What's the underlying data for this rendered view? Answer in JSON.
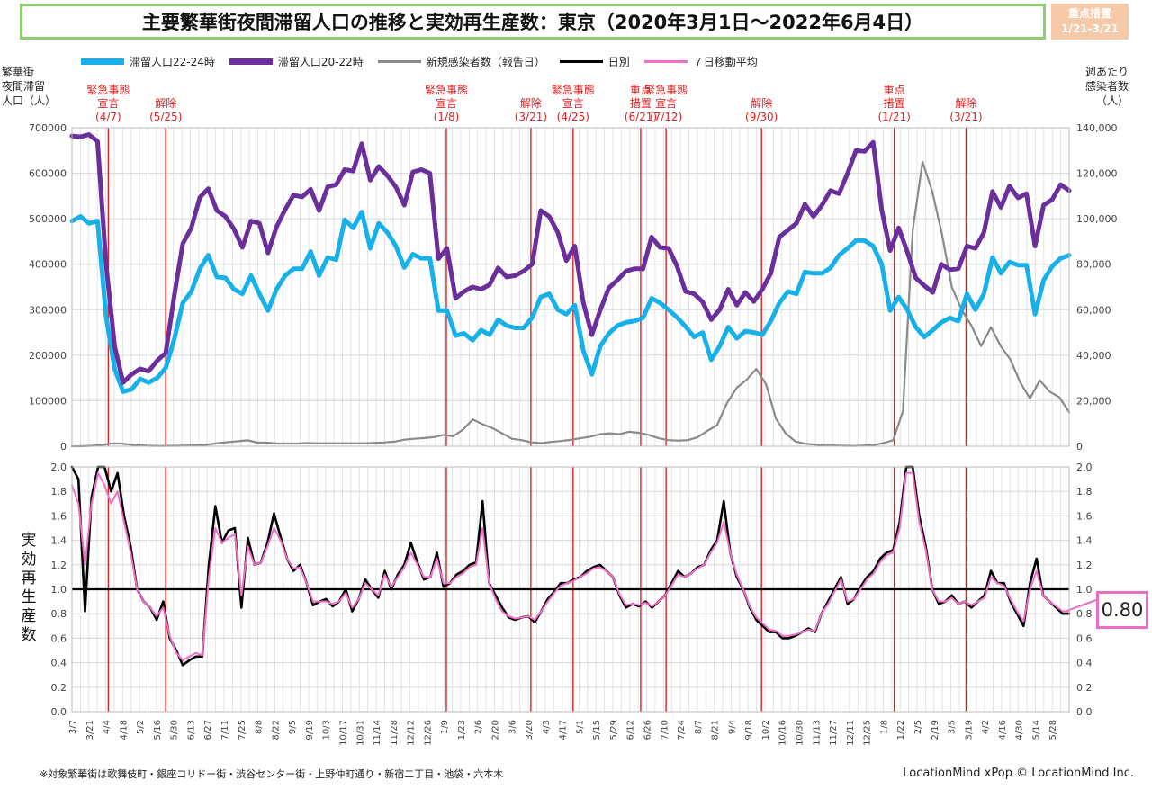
{
  "title": "主要繁華街夜間滞留人口の推移と実効再生産数：東京（2020年3月1日～2022年6月4日）",
  "badge": [
    "重点措置",
    "1/21-3/21"
  ],
  "legend": [
    {
      "name": "滞留人口22-24時",
      "color": "#18b0e8"
    },
    {
      "name": "滞留人口20-22時",
      "color": "#6a2f9a"
    },
    {
      "name": "新規感染者数（報告日）",
      "color": "#8a8a8a"
    },
    {
      "name": "日別",
      "color": "#000000"
    },
    {
      "name": "７日移動平均",
      "color": "#f06fc8"
    }
  ],
  "left_axis_title": [
    "繁華街",
    "夜間滞留",
    "人口（人）"
  ],
  "right_axis_title": [
    "週あたり",
    "感染者数",
    "（人）"
  ],
  "lower_axis_title": "実効再生産数",
  "rt_current": "0.80",
  "footnote": "※対象繁華街は歌舞伎町・銀座コリドー街・渋谷センター街・上野仲町通り・新宿二丁目・池袋・六本木",
  "credit": "LocationMind xPop © LocationMind Inc.",
  "chart_data": [
    {
      "type": "line",
      "x_ticks": [
        "3/7",
        "3/21",
        "4/4",
        "4/18",
        "5/2",
        "5/16",
        "5/30",
        "6/13",
        "6/27",
        "7/11",
        "7/25",
        "8/8",
        "8/22",
        "9/5",
        "9/19",
        "10/3",
        "10/17",
        "10/31",
        "11/14",
        "11/28",
        "12/12",
        "12/26",
        "1/9",
        "1/23",
        "2/6",
        "2/20",
        "3/6",
        "3/20",
        "4/3",
        "4/17",
        "5/1",
        "5/15",
        "5/29",
        "6/12",
        "6/26",
        "7/10",
        "7/24",
        "8/7",
        "8/21",
        "9/4",
        "9/18",
        "10/2",
        "10/16",
        "10/30",
        "11/13",
        "11/27",
        "12/11",
        "12/25",
        "1/8",
        "1/22",
        "2/5",
        "2/19",
        "3/5",
        "3/19",
        "4/2",
        "4/16",
        "4/30",
        "5/14",
        "5/28"
      ],
      "x_ticks_shown": [
        "3/7",
        "3/21",
        "4/4",
        "4/18",
        "5/2",
        "5/16",
        "5/30",
        "6/13",
        "6/27",
        "7/11",
        "7/25",
        "8/8",
        "8/22",
        "9/5",
        "9/19",
        "10/3",
        "10/17",
        "10/31",
        "11/14",
        "11/28",
        "12/12",
        "12/26",
        "1/9",
        "1/23",
        "2/6",
        "2/20",
        "3/6",
        "3/20",
        "4/3",
        "4/17",
        "5/1",
        "5/15",
        "5/29",
        "6/12",
        "6/26",
        "7/10",
        "7/24",
        "8/7",
        "8/21",
        "9/4",
        "9/18",
        "10/2",
        "10/16",
        "10/30",
        "11/13",
        "11/27",
        "12/11",
        "12/25",
        "1/8",
        "1/22",
        "2/5",
        "2/19",
        "3/5",
        "3/19",
        "4/2",
        "4/16",
        "4/30",
        "5/14",
        "5/28"
      ],
      "x_ticks_lower": [
        "3/7",
        "3/21",
        "4/4",
        "4/18",
        "5/2",
        "5/16",
        "5/30",
        "6/13",
        "6/27",
        "7/11",
        "7/25",
        "8/8",
        "8/22",
        "9/5",
        "9/19",
        "10/3",
        "10/17",
        "10/31",
        "11/14",
        "11/28",
        "12/12",
        "12/26",
        "1/9",
        "1/23",
        "2/6",
        "2/20",
        "3/6",
        "3/20",
        "4/3",
        "4/17",
        "5/1",
        "5/15",
        "5/29",
        "6/12",
        "6/26",
        "7/10",
        "7/24",
        "8/7",
        "8/21",
        "9/4",
        "9/18",
        "10/2",
        "10/16",
        "10/30",
        "11/13",
        "11/27",
        "12/11",
        "12/25",
        "1/8",
        "1/22",
        "2/5",
        "2/19",
        "3/5",
        "3/19",
        "4/2",
        "4/16",
        "4/30",
        "5/14",
        "5/28"
      ],
      "ylim_left": [
        0,
        700000
      ],
      "yticks_left": [
        "0",
        "100000",
        "200000",
        "300000",
        "400000",
        "500000",
        "600000",
        "700000"
      ],
      "ylim_right": [
        0,
        140000
      ],
      "yticks_right": [
        "0",
        "20,000",
        "40,000",
        "60,000",
        "80,000",
        "100,000",
        "120,000",
        "140,000"
      ],
      "grid": true,
      "events": [
        {
          "label": [
            "緊急事態",
            "宣言",
            "(4/7)"
          ],
          "week": 4.3
        },
        {
          "label": [
            "解除",
            "(5/25)"
          ],
          "week": 11.1
        },
        {
          "label": [
            "緊急事態",
            "宣言",
            "(1/8)"
          ],
          "week": 44.3
        },
        {
          "label": [
            "解除",
            "(3/21)"
          ],
          "week": 54.3
        },
        {
          "label": [
            "緊急事態",
            "宣言",
            "(4/25)"
          ],
          "week": 59.3
        },
        {
          "label": [
            "重点",
            "措置",
            "(6/21)"
          ],
          "week": 67.3
        },
        {
          "label": [
            "緊急事態",
            "宣言",
            "(7/12)"
          ],
          "week": 70.3
        },
        {
          "label": [
            "解除",
            "(9/30)"
          ],
          "week": 81.6
        },
        {
          "label": [
            "重点",
            "措置",
            "(1/21)"
          ],
          "week": 97.3
        },
        {
          "label": [
            "解除",
            "(3/21)"
          ],
          "week": 105.8
        }
      ],
      "series": [
        {
          "name": "滞留人口22-24時",
          "color": "#18b0e8",
          "axis": "left",
          "values": [
            495000,
            505000,
            490000,
            495000,
            285000,
            170000,
            120000,
            125000,
            148000,
            140000,
            150000,
            172000,
            235000,
            315000,
            340000,
            390000,
            420000,
            372000,
            370000,
            345000,
            335000,
            375000,
            335000,
            298000,
            345000,
            375000,
            390000,
            390000,
            428000,
            375000,
            415000,
            410000,
            498000,
            480000,
            515000,
            435000,
            490000,
            470000,
            440000,
            393000,
            422000,
            413000,
            413000,
            298000,
            298000,
            243000,
            248000,
            233000,
            255000,
            245000,
            278000,
            265000,
            260000,
            260000,
            283000,
            328000,
            335000,
            300000,
            290000,
            310000,
            210000,
            158000,
            220000,
            248000,
            265000,
            272000,
            275000,
            282000,
            325000,
            315000,
            300000,
            283000,
            263000,
            240000,
            250000,
            190000,
            220000,
            262000,
            237000,
            253000,
            250000,
            245000,
            275000,
            315000,
            340000,
            335000,
            383000,
            380000,
            380000,
            392000,
            420000,
            435000,
            452000,
            452000,
            440000,
            400000,
            298000,
            328000,
            300000,
            262000,
            240000,
            255000,
            272000,
            282000,
            275000,
            335000,
            300000,
            335000,
            415000,
            380000,
            405000,
            398000,
            398000,
            290000,
            365000,
            395000,
            413000,
            420000
          ]
        },
        {
          "name": "滞留人口20-22時",
          "color": "#6a2f9a",
          "axis": "left",
          "values": [
            682000,
            680000,
            685000,
            670000,
            400000,
            220000,
            140000,
            158000,
            170000,
            165000,
            188000,
            205000,
            330000,
            445000,
            480000,
            547000,
            566000,
            518000,
            505000,
            478000,
            437000,
            495000,
            490000,
            425000,
            482000,
            520000,
            552000,
            548000,
            565000,
            518000,
            570000,
            575000,
            608000,
            605000,
            665000,
            585000,
            615000,
            595000,
            570000,
            530000,
            603000,
            608000,
            600000,
            412000,
            435000,
            325000,
            340000,
            350000,
            345000,
            355000,
            392000,
            372000,
            375000,
            385000,
            400000,
            518000,
            505000,
            470000,
            408000,
            440000,
            315000,
            245000,
            300000,
            348000,
            365000,
            385000,
            390000,
            390000,
            460000,
            437000,
            435000,
            395000,
            340000,
            335000,
            317000,
            278000,
            300000,
            345000,
            310000,
            338000,
            318000,
            345000,
            380000,
            460000,
            475000,
            490000,
            532000,
            505000,
            530000,
            562000,
            555000,
            600000,
            650000,
            648000,
            668000,
            520000,
            430000,
            480000,
            428000,
            370000,
            353000,
            338000,
            400000,
            388000,
            390000,
            440000,
            435000,
            470000,
            560000,
            525000,
            572000,
            546000,
            555000,
            440000,
            530000,
            542000,
            575000,
            562000
          ]
        },
        {
          "name": "新規感染者数（報告日）",
          "color": "#8a8a8a",
          "axis": "right",
          "values": [
            0,
            0,
            200,
            500,
            1200,
            1200,
            700,
            400,
            200,
            100,
            200,
            200,
            300,
            400,
            800,
            1400,
            1800,
            2200,
            2600,
            1600,
            1600,
            1200,
            1200,
            1200,
            1400,
            1300,
            1300,
            1300,
            1300,
            1300,
            1300,
            1500,
            1700,
            2000,
            2900,
            3300,
            3600,
            4000,
            5000,
            4400,
            7300,
            11800,
            9700,
            8000,
            5700,
            3300,
            2700,
            1700,
            1400,
            1900,
            2300,
            2800,
            3500,
            4200,
            5300,
            5700,
            5300,
            6400,
            5900,
            5000,
            3500,
            2700,
            2500,
            2700,
            4000,
            6800,
            9300,
            19000,
            25700,
            29200,
            34000,
            27200,
            12200,
            5700,
            2100,
            1100,
            700,
            300,
            300,
            200,
            100,
            300,
            500,
            1400,
            2700,
            15400,
            95000,
            125000,
            112000,
            93000,
            70000,
            60000,
            53000,
            44000,
            52300,
            44000,
            38000,
            28000,
            21000,
            29000,
            24000,
            21500,
            15000
          ]
        },
        {
          "name": "日別",
          "color": "#000000",
          "axis": "rt",
          "values": [
            2.0,
            1.9,
            0.82,
            1.75,
            2.05,
            2.0,
            1.8,
            1.95,
            1.6,
            1.35,
            1.0,
            0.9,
            0.85,
            0.75,
            0.9,
            0.6,
            0.5,
            0.38,
            0.42,
            0.45,
            0.45,
            1.2,
            1.68,
            1.38,
            1.48,
            1.5,
            0.85,
            1.42,
            1.2,
            1.22,
            1.38,
            1.62,
            1.43,
            1.25,
            1.15,
            1.2,
            1.05,
            0.87,
            0.9,
            0.92,
            0.86,
            0.9,
            1.0,
            0.82,
            0.92,
            1.08,
            1.0,
            0.93,
            1.15,
            1.0,
            1.12,
            1.2,
            1.38,
            1.22,
            1.08,
            1.1,
            1.3,
            1.02,
            1.05,
            1.12,
            1.15,
            1.2,
            1.22,
            1.72,
            1.05,
            0.95,
            0.85,
            0.77,
            0.75,
            0.77,
            0.78,
            0.73,
            0.82,
            0.92,
            0.98,
            1.05,
            1.05,
            1.08,
            1.1,
            1.15,
            1.18,
            1.2,
            1.15,
            1.1,
            0.95,
            0.85,
            0.88,
            0.86,
            0.9,
            0.85,
            0.9,
            0.95,
            1.05,
            1.15,
            1.1,
            1.13,
            1.18,
            1.2,
            1.32,
            1.4,
            1.72,
            1.3,
            1.1,
            1.0,
            0.85,
            0.75,
            0.7,
            0.65,
            0.65,
            0.6,
            0.6,
            0.62,
            0.65,
            0.68,
            0.65,
            0.8,
            0.9,
            1.0,
            1.1,
            0.88,
            0.92,
            1.02,
            1.1,
            1.15,
            1.25,
            1.3,
            1.32,
            1.55,
            2.0,
            2.0,
            1.6,
            1.35,
            1.0,
            0.88,
            0.9,
            0.95,
            0.88,
            0.9,
            0.85,
            0.9,
            0.95,
            1.15,
            1.05,
            1.05,
            0.9,
            0.8,
            0.7,
            1.05,
            1.25,
            0.95,
            0.9,
            0.85,
            0.8,
            0.8
          ]
        },
        {
          "name": "７日移動平均",
          "color": "#f06fc8",
          "axis": "rt",
          "values": [
            1.85,
            1.7,
            1.2,
            1.7,
            1.95,
            1.85,
            1.7,
            1.8,
            1.55,
            1.3,
            1.0,
            0.9,
            0.85,
            0.78,
            0.85,
            0.62,
            0.48,
            0.42,
            0.45,
            0.48,
            0.46,
            1.1,
            1.5,
            1.38,
            1.42,
            1.45,
            0.95,
            1.35,
            1.2,
            1.22,
            1.35,
            1.5,
            1.4,
            1.25,
            1.17,
            1.18,
            1.05,
            0.9,
            0.9,
            0.9,
            0.88,
            0.9,
            0.97,
            0.85,
            0.92,
            1.05,
            1.0,
            0.95,
            1.12,
            1.02,
            1.1,
            1.18,
            1.3,
            1.2,
            1.1,
            1.1,
            1.25,
            1.05,
            1.05,
            1.1,
            1.13,
            1.18,
            1.2,
            1.5,
            1.05,
            0.92,
            0.82,
            0.78,
            0.76,
            0.77,
            0.78,
            0.75,
            0.82,
            0.9,
            0.97,
            1.03,
            1.05,
            1.07,
            1.1,
            1.13,
            1.17,
            1.18,
            1.15,
            1.1,
            0.96,
            0.87,
            0.88,
            0.87,
            0.89,
            0.86,
            0.9,
            0.95,
            1.03,
            1.12,
            1.1,
            1.13,
            1.17,
            1.2,
            1.3,
            1.38,
            1.55,
            1.3,
            1.12,
            1.0,
            0.86,
            0.77,
            0.72,
            0.67,
            0.66,
            0.62,
            0.62,
            0.63,
            0.65,
            0.67,
            0.66,
            0.8,
            0.88,
            0.98,
            1.08,
            0.9,
            0.92,
            1.0,
            1.08,
            1.13,
            1.22,
            1.28,
            1.3,
            1.5,
            1.95,
            1.95,
            1.55,
            1.32,
            1.0,
            0.9,
            0.9,
            0.93,
            0.88,
            0.9,
            0.87,
            0.9,
            0.93,
            1.1,
            1.05,
            1.03,
            0.92,
            0.82,
            0.74,
            1.0,
            1.15,
            0.95,
            0.9,
            0.86,
            0.82,
            0.82
          ]
        }
      ]
    },
    {
      "type": "line",
      "ylim": [
        0,
        2.0
      ],
      "yticks": [
        "0.0",
        "0.2",
        "0.4",
        "0.6",
        "0.8",
        "1.0",
        "1.2",
        "1.4",
        "1.6",
        "1.8",
        "2.0"
      ],
      "reference_line": 1.0
    }
  ]
}
